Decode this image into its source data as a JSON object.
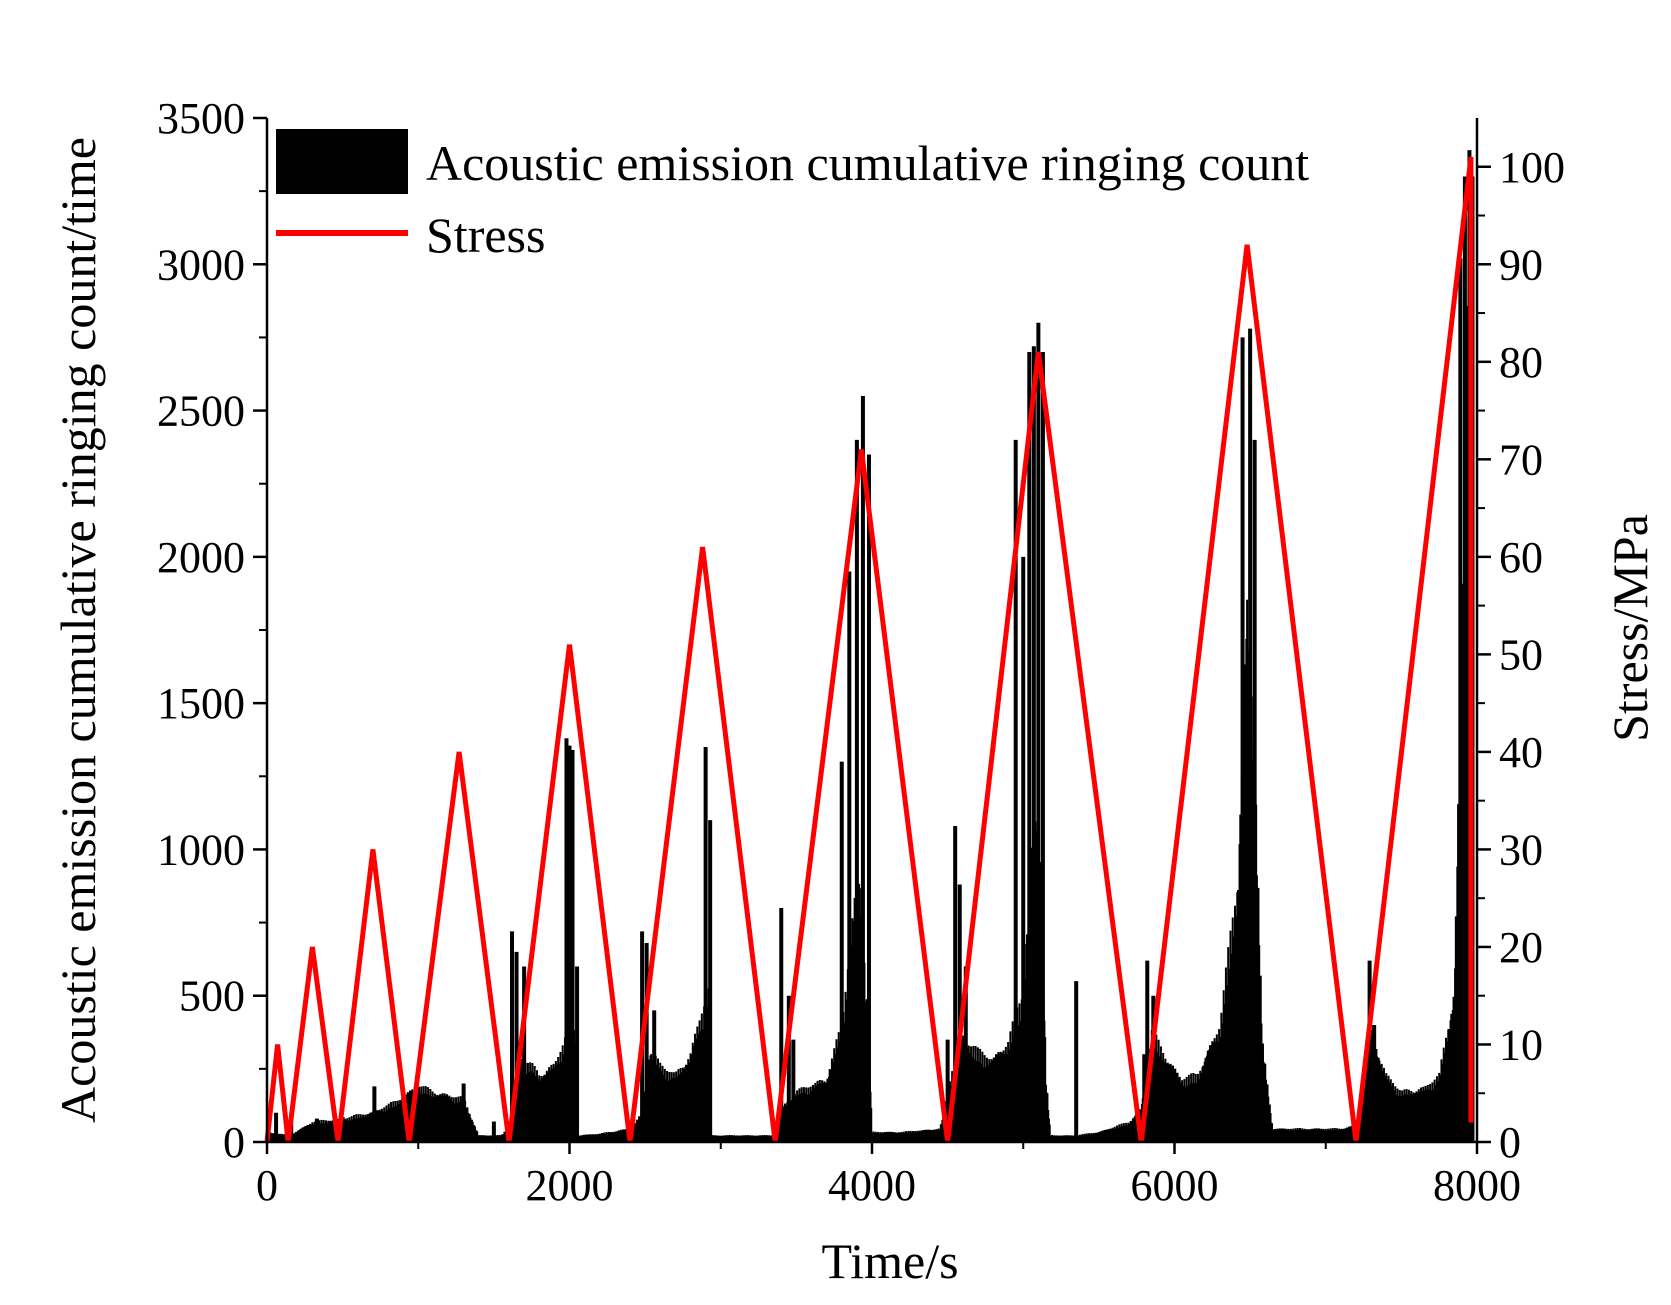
{
  "chart_data": {
    "type": "bar+line",
    "title": "",
    "xlabel": "Time/s",
    "ylabel_left": "Acoustic emission cumulative ringing count/time",
    "ylabel_right": "Stress/MPa",
    "xlim": [
      0,
      8000
    ],
    "ylim_left": [
      0,
      3500
    ],
    "ylim_right": [
      0,
      105
    ],
    "x_ticks": [
      "0",
      "2000",
      "4000",
      "6000",
      "8000"
    ],
    "y_left_ticks": [
      "0",
      "500",
      "1000",
      "1500",
      "2000",
      "2500",
      "3000",
      "3500"
    ],
    "y_right_ticks": [
      "0",
      "10",
      "20",
      "30",
      "40",
      "50",
      "60",
      "70",
      "80",
      "90",
      "100"
    ],
    "grid": false,
    "legend_position": "top-left",
    "colors": {
      "ae": "#000000",
      "stress": "#ff0000"
    },
    "series": [
      {
        "name": "Acoustic emission cumulative ringing count",
        "kind": "bar",
        "baseline": [
          [
            0,
            30
          ],
          [
            150,
            20
          ],
          [
            300,
            60
          ],
          [
            500,
            70
          ],
          [
            700,
            90
          ],
          [
            850,
            120
          ],
          [
            1000,
            170
          ],
          [
            1100,
            150
          ],
          [
            1300,
            130
          ],
          [
            1400,
            20
          ],
          [
            1550,
            20
          ],
          [
            1620,
            60
          ],
          [
            1680,
            250
          ],
          [
            1750,
            230
          ],
          [
            1800,
            200
          ],
          [
            1900,
            230
          ],
          [
            1980,
            320
          ],
          [
            2000,
            380
          ],
          [
            2050,
            300
          ],
          [
            2060,
            20
          ],
          [
            2200,
            25
          ],
          [
            2400,
            40
          ],
          [
            2470,
            80
          ],
          [
            2530,
            280
          ],
          [
            2600,
            230
          ],
          [
            2700,
            200
          ],
          [
            2800,
            260
          ],
          [
            2880,
            400
          ],
          [
            2920,
            450
          ],
          [
            2940,
            20
          ],
          [
            3100,
            20
          ],
          [
            3350,
            20
          ],
          [
            3400,
            100
          ],
          [
            3500,
            150
          ],
          [
            3600,
            170
          ],
          [
            3700,
            190
          ],
          [
            3800,
            350
          ],
          [
            3880,
            700
          ],
          [
            3920,
            800
          ],
          [
            3980,
            300
          ],
          [
            4000,
            30
          ],
          [
            4200,
            30
          ],
          [
            4450,
            40
          ],
          [
            4500,
            150
          ],
          [
            4580,
            330
          ],
          [
            4700,
            270
          ],
          [
            4800,
            250
          ],
          [
            4900,
            300
          ],
          [
            5000,
            450
          ],
          [
            5070,
            1000
          ],
          [
            5120,
            850
          ],
          [
            5150,
            200
          ],
          [
            5180,
            20
          ],
          [
            5350,
            20
          ],
          [
            5500,
            30
          ],
          [
            5700,
            60
          ],
          [
            5780,
            100
          ],
          [
            5850,
            330
          ],
          [
            5950,
            250
          ],
          [
            6050,
            190
          ],
          [
            6150,
            200
          ],
          [
            6300,
            350
          ],
          [
            6420,
            800
          ],
          [
            6480,
            1600
          ],
          [
            6530,
            1200
          ],
          [
            6580,
            300
          ],
          [
            6650,
            40
          ],
          [
            6900,
            40
          ],
          [
            7100,
            40
          ],
          [
            7200,
            50
          ],
          [
            7300,
            330
          ],
          [
            7400,
            200
          ],
          [
            7500,
            150
          ],
          [
            7650,
            160
          ],
          [
            7750,
            200
          ],
          [
            7850,
            450
          ],
          [
            7900,
            1500
          ],
          [
            7950,
            3000
          ],
          [
            7970,
            20
          ]
        ],
        "spikes": [
          [
            60,
            100
          ],
          [
            160,
            80
          ],
          [
            330,
            80
          ],
          [
            420,
            70
          ],
          [
            500,
            85
          ],
          [
            600,
            80
          ],
          [
            710,
            190
          ],
          [
            760,
            70
          ],
          [
            900,
            150
          ],
          [
            1000,
            180
          ],
          [
            1300,
            200
          ],
          [
            1500,
            70
          ],
          [
            1620,
            720
          ],
          [
            1650,
            650
          ],
          [
            1700,
            600
          ],
          [
            1980,
            1380
          ],
          [
            2000,
            1355
          ],
          [
            2020,
            1340
          ],
          [
            2050,
            600
          ],
          [
            2480,
            720
          ],
          [
            2510,
            680
          ],
          [
            2560,
            450
          ],
          [
            2900,
            1350
          ],
          [
            2930,
            1100
          ],
          [
            3400,
            800
          ],
          [
            3450,
            500
          ],
          [
            3480,
            350
          ],
          [
            3800,
            1300
          ],
          [
            3850,
            1950
          ],
          [
            3900,
            2400
          ],
          [
            3940,
            2550
          ],
          [
            3980,
            2350
          ],
          [
            4500,
            350
          ],
          [
            4550,
            1080
          ],
          [
            4580,
            880
          ],
          [
            4620,
            600
          ],
          [
            4950,
            2400
          ],
          [
            5000,
            2000
          ],
          [
            5040,
            2700
          ],
          [
            5070,
            2720
          ],
          [
            5100,
            2800
          ],
          [
            5130,
            2700
          ],
          [
            5350,
            550
          ],
          [
            5800,
            300
          ],
          [
            5820,
            620
          ],
          [
            5860,
            500
          ],
          [
            6450,
            2750
          ],
          [
            6500,
            2780
          ],
          [
            6530,
            2400
          ],
          [
            7290,
            620
          ],
          [
            7320,
            400
          ],
          [
            7890,
            3020
          ],
          [
            7920,
            3300
          ],
          [
            7950,
            3390
          ],
          [
            7970,
            3300
          ]
        ]
      },
      {
        "name": "Stress",
        "kind": "line",
        "points": [
          [
            0,
            0
          ],
          [
            70,
            10
          ],
          [
            140,
            0
          ],
          [
            300,
            20
          ],
          [
            470,
            0
          ],
          [
            700,
            30
          ],
          [
            940,
            0
          ],
          [
            1270,
            40
          ],
          [
            1600,
            0
          ],
          [
            2000,
            51
          ],
          [
            2400,
            0
          ],
          [
            2880,
            61
          ],
          [
            3360,
            0
          ],
          [
            3930,
            71
          ],
          [
            4500,
            0
          ],
          [
            5100,
            81
          ],
          [
            5780,
            0
          ],
          [
            6480,
            92
          ],
          [
            7200,
            0
          ],
          [
            7960,
            101
          ],
          [
            7960,
            2
          ]
        ]
      }
    ]
  }
}
